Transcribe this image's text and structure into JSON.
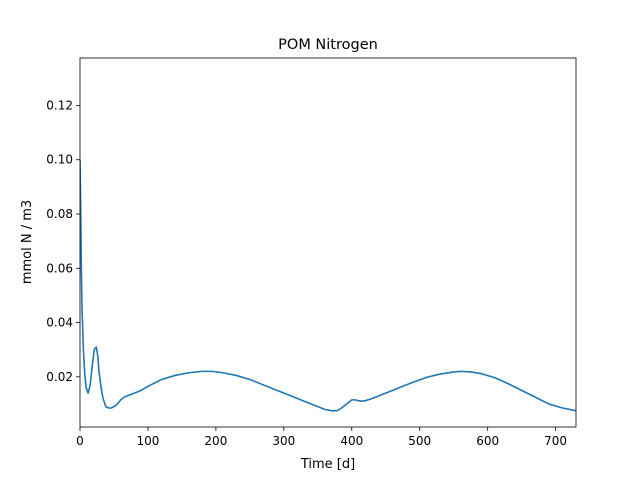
{
  "chart_data": {
    "type": "line",
    "title": "POM Nitrogen",
    "xlabel": "Time [d]",
    "ylabel": "mmol N / m3",
    "xlim": [
      0,
      730
    ],
    "ylim": [
      0.0015,
      0.1375
    ],
    "xticks": [
      0,
      100,
      200,
      300,
      400,
      500,
      600,
      700
    ],
    "xtick_labels": [
      "0",
      "100",
      "200",
      "300",
      "400",
      "500",
      "600",
      "700"
    ],
    "yticks": [
      0.02,
      0.04,
      0.06,
      0.08,
      0.1,
      0.12
    ],
    "ytick_labels": [
      "0.02",
      "0.04",
      "0.06",
      "0.08",
      "0.10",
      "0.12"
    ],
    "grid": false,
    "series": [
      {
        "color": "#1f77b4",
        "x": [
          0,
          1,
          2,
          3,
          5,
          7,
          9,
          12,
          15,
          18,
          21,
          24,
          26,
          28,
          31,
          34,
          38,
          42,
          46,
          50,
          55,
          60,
          65,
          70,
          80,
          90,
          100,
          120,
          140,
          160,
          180,
          195,
          210,
          230,
          250,
          270,
          290,
          310,
          330,
          350,
          360,
          370,
          378,
          385,
          390,
          395,
          400,
          405,
          410,
          415,
          420,
          430,
          450,
          470,
          490,
          510,
          530,
          550,
          560,
          575,
          590,
          610,
          630,
          650,
          670,
          690,
          710,
          730
        ],
        "y": [
          0.1,
          0.082,
          0.06,
          0.045,
          0.03,
          0.021,
          0.016,
          0.014,
          0.017,
          0.024,
          0.03,
          0.031,
          0.028,
          0.022,
          0.016,
          0.012,
          0.009,
          0.0085,
          0.0085,
          0.009,
          0.01,
          0.0115,
          0.0125,
          0.013,
          0.014,
          0.015,
          0.0165,
          0.019,
          0.0205,
          0.0215,
          0.022,
          0.022,
          0.0215,
          0.0205,
          0.019,
          0.017,
          0.015,
          0.013,
          0.011,
          0.009,
          0.008,
          0.0075,
          0.0075,
          0.0085,
          0.0095,
          0.0105,
          0.0115,
          0.0115,
          0.0112,
          0.011,
          0.0112,
          0.012,
          0.014,
          0.016,
          0.018,
          0.0198,
          0.021,
          0.0218,
          0.022,
          0.0218,
          0.0212,
          0.0197,
          0.0175,
          0.015,
          0.0125,
          0.01,
          0.0085,
          0.0075
        ]
      }
    ]
  }
}
